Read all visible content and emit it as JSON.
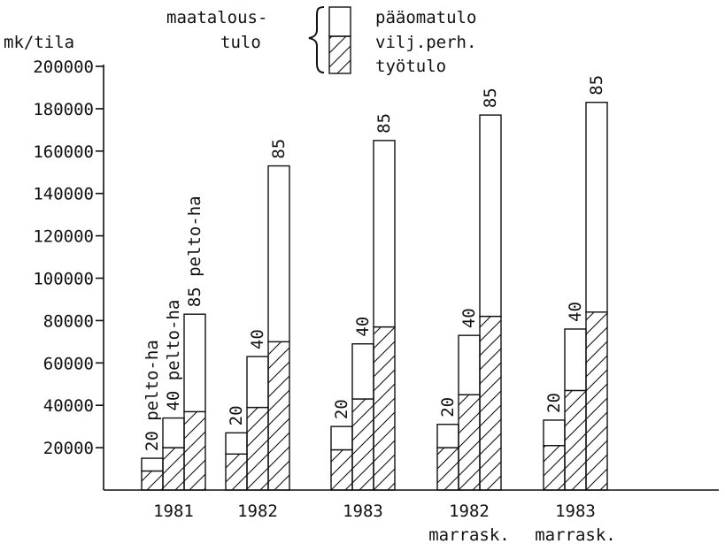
{
  "chart_data": {
    "type": "bar",
    "ylabel": "mk/tila",
    "ylim": [
      0,
      200000
    ],
    "yticks": [
      20000,
      40000,
      60000,
      80000,
      100000,
      120000,
      140000,
      160000,
      180000,
      200000
    ],
    "grid": false,
    "legend": {
      "group_label": "maatalous-\ntulo",
      "entries": [
        {
          "name": "pääomatulo",
          "pattern": "blank"
        },
        {
          "name": "vilj.perh.\ntyötulo",
          "pattern": "hatched"
        }
      ],
      "position": "top-center"
    },
    "groups": [
      {
        "label": "1981",
        "sublabel": "",
        "bars": [
          {
            "label": "20 pelto-ha",
            "total": 15000,
            "tyotulo": 9000
          },
          {
            "label": "40 pelto-ha",
            "total": 34000,
            "tyotulo": 20000
          },
          {
            "label": "85 pelto-ha",
            "total": 83000,
            "tyotulo": 37000
          }
        ]
      },
      {
        "label": "1982",
        "sublabel": "",
        "bars": [
          {
            "label": "20",
            "total": 27000,
            "tyotulo": 17000
          },
          {
            "label": "40",
            "total": 63000,
            "tyotulo": 39000
          },
          {
            "label": "85",
            "total": 153000,
            "tyotulo": 70000
          }
        ]
      },
      {
        "label": "1983",
        "sublabel": "",
        "bars": [
          {
            "label": "20",
            "total": 30000,
            "tyotulo": 19000
          },
          {
            "label": "40",
            "total": 69000,
            "tyotulo": 43000
          },
          {
            "label": "85",
            "total": 165000,
            "tyotulo": 77000
          }
        ]
      },
      {
        "label": "1982",
        "sublabel": "marrask.",
        "bars": [
          {
            "label": "20",
            "total": 31000,
            "tyotulo": 20000
          },
          {
            "label": "40",
            "total": 73000,
            "tyotulo": 45000
          },
          {
            "label": "85",
            "total": 177000,
            "tyotulo": 82000
          }
        ]
      },
      {
        "label": "1983",
        "sublabel": "marrask.",
        "bars": [
          {
            "label": "20",
            "total": 33000,
            "tyotulo": 21000
          },
          {
            "label": "40",
            "total": 76000,
            "tyotulo": 47000
          },
          {
            "label": "85",
            "total": 183000,
            "tyotulo": 84000
          }
        ]
      }
    ]
  }
}
